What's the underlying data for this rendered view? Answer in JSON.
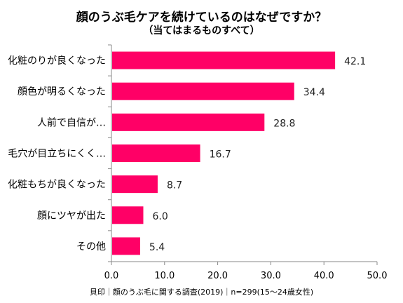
{
  "chart_data": {
    "type": "bar",
    "orientation": "horizontal",
    "title": "顔のうぶ毛ケアを続けているのはなぜですか？",
    "subtitle": "（当てはまるものすべて）",
    "categories": [
      "化粧のりが良くなった",
      "顔色が明るくなった",
      "人前で自信が…",
      "毛穴が目立ちにくく…",
      "化粧もちが良くなった",
      "顔にツヤが出た",
      "その他"
    ],
    "values": [
      42.1,
      34.4,
      28.8,
      16.7,
      8.7,
      6.0,
      5.4
    ],
    "value_labels": [
      "42.1",
      "34.4",
      "28.8",
      "16.7",
      "8.7",
      "6.0",
      "5.4"
    ],
    "xlim": [
      0,
      50
    ],
    "x_ticks": [
      "0.0",
      "10.0",
      "20.0",
      "30.0",
      "40.0",
      "50.0"
    ],
    "grid": false,
    "legend": "none",
    "bar_color": "#ff0066",
    "note": "貝印｜顔のうぶ毛に関する調査(2019)｜n=299(15～24歳女性)"
  }
}
